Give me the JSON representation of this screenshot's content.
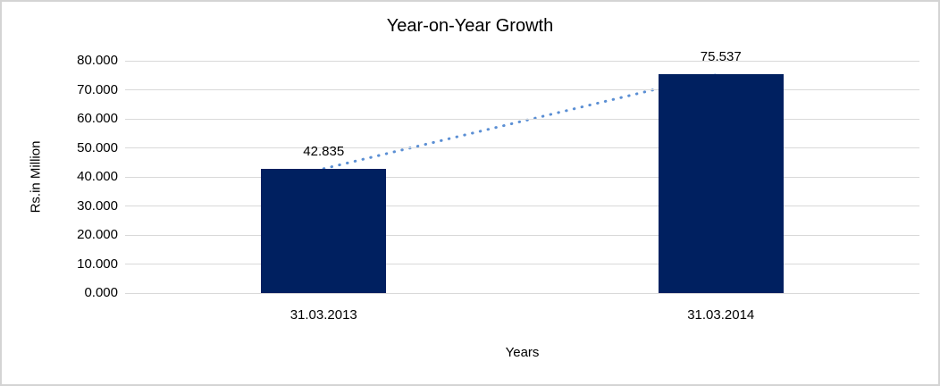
{
  "chart_data": {
    "type": "bar",
    "title": "Year-on-Year Growth",
    "xlabel": "Years",
    "ylabel": "Rs.in Million",
    "categories": [
      "31.03.2013",
      "31.03.2014"
    ],
    "values": [
      42.835,
      75.537
    ],
    "value_labels": [
      "42.835",
      "75.537"
    ],
    "series": [
      {
        "name": "Rs.in Million",
        "values": [
          42.835,
          75.537
        ]
      }
    ],
    "y_ticks": [
      {
        "value": 0,
        "label": "0.000"
      },
      {
        "value": 10,
        "label": "10.000"
      },
      {
        "value": 20,
        "label": "20.000"
      },
      {
        "value": 30,
        "label": "30.000"
      },
      {
        "value": 40,
        "label": "40.000"
      },
      {
        "value": 50,
        "label": "50.000"
      },
      {
        "value": 60,
        "label": "60.000"
      },
      {
        "value": 70,
        "label": "70.000"
      },
      {
        "value": 80,
        "label": "80.000"
      }
    ],
    "ylim": [
      0,
      80
    ],
    "grid": true,
    "legend": false,
    "trendline": {
      "style": "dotted",
      "connects": "bar-tops"
    },
    "colors": {
      "bar": "#002060",
      "trendline": "#5b8fd4",
      "gridline": "#d9d9d9",
      "frame_border": "#d4d4d4",
      "text": "#000000",
      "background": "#ffffff"
    }
  }
}
